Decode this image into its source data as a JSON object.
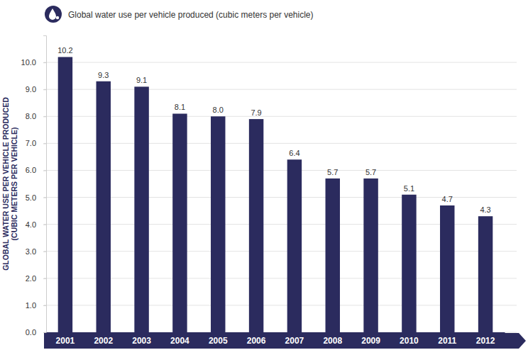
{
  "chart_data": {
    "type": "bar",
    "title": "Global water use per vehicle produced (cubic meters per vehicle)",
    "ylabel": [
      "GLOBAL WATER USE PER VEHICLE PRODUCED",
      "(CUBIC METERS PER VEHICLE)"
    ],
    "categories": [
      "2001",
      "2002",
      "2003",
      "2004",
      "2005",
      "2006",
      "2007",
      "2008",
      "2009",
      "2010",
      "2011",
      "2012"
    ],
    "values": [
      10.2,
      9.3,
      9.1,
      8.1,
      8.0,
      7.9,
      6.4,
      5.7,
      5.7,
      5.1,
      4.7,
      4.3
    ],
    "value_labels": [
      "10.2",
      "9.3",
      "9.1",
      "8.1",
      "8.0",
      "7.9",
      "6.4",
      "5.7",
      "5.7",
      "5.1",
      "4.7",
      "4.3"
    ],
    "color": "#2b2b5e",
    "ylim": [
      0,
      11
    ],
    "yticks": [
      {
        "value": 0,
        "label": "0.0"
      },
      {
        "value": 1,
        "label": "1.0"
      },
      {
        "value": 2,
        "label": "2.0"
      },
      {
        "value": 3,
        "label": "3.0"
      },
      {
        "value": 4,
        "label": "4.0"
      },
      {
        "value": 5,
        "label": "5.0"
      },
      {
        "value": 6,
        "label": "6.0"
      },
      {
        "value": 7,
        "label": "7.0"
      },
      {
        "value": 8,
        "label": "8.0"
      },
      {
        "value": 9,
        "label": "9.0"
      },
      {
        "value": 10,
        "label": "10.0"
      }
    ],
    "grid": true,
    "data_labels": true
  }
}
